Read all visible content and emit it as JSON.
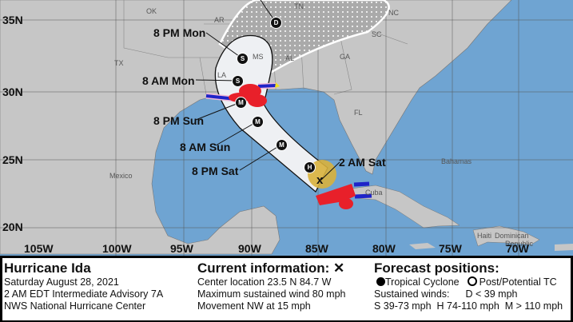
{
  "map": {
    "colors": {
      "ocean": "#6fa4d2",
      "land": "#c6c6c6",
      "cone": "#f2f2f2",
      "hurricane_warning": "#e8202a",
      "tropical_storm_warning": "#1f24c8",
      "current_wind_field": "#d8b13c",
      "watch": "#f0b8d8"
    },
    "lat_labels": [
      "35N",
      "30N",
      "25N",
      "20N"
    ],
    "lon_labels": [
      "105W",
      "100W",
      "95W",
      "90W",
      "85W",
      "80W",
      "75W",
      "70W"
    ],
    "regions": {
      "ok": "OK",
      "ar": "AR",
      "tn": "TN",
      "nc": "NC",
      "sc": "SC",
      "ga": "GA",
      "ms": "MS",
      "al": "AL",
      "la": "LA",
      "tx": "TX",
      "fl": "FL",
      "mexico": "Mexico",
      "bahamas": "Bahamas",
      "cuba": "Cuba",
      "haiti": "Haiti",
      "dominican": "Dominican",
      "republic": "Republic"
    },
    "times": [
      "8 PM Mon",
      "8 AM Mon",
      "8 PM Sun",
      "8 AM Sun",
      "8 PM Sat",
      "2 AM Sat"
    ],
    "markers": [
      "D",
      "S",
      "S",
      "M",
      "M",
      "M",
      "H"
    ],
    "current_marker": "x"
  },
  "legend": {
    "storm_name": "Hurricane Ida",
    "date": "Saturday August 28, 2021",
    "advisory": "2 AM EDT Intermediate Advisory 7A",
    "center": "NWS National Hurricane Center",
    "current_title": "Current information: ✕",
    "location": "Center location 23.5 N 84.7 W",
    "wind": "Maximum sustained wind 80 mph",
    "movement": "Movement NW at 15 mph",
    "forecast_title": "Forecast positions:",
    "tropical": "Tropical Cyclone",
    "post": "Post/Potential TC",
    "sustained": "Sustained winds:",
    "d": "D < 39 mph",
    "categories": "S 39-73 mph  H 74-110 mph  M > 110 mph"
  }
}
